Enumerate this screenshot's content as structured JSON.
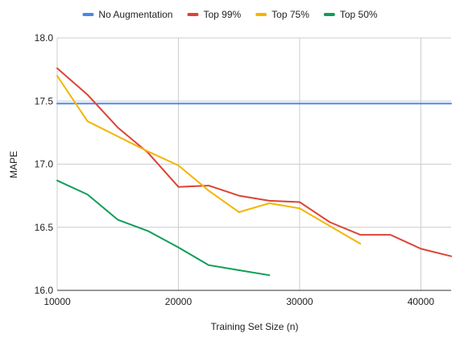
{
  "chart_data": {
    "type": "line",
    "title": "",
    "xlabel": "Training Set Size (n)",
    "ylabel": "MAPE",
    "xlim": [
      10000,
      42500
    ],
    "ylim": [
      16.0,
      18.0
    ],
    "x_ticks": [
      10000,
      20000,
      30000,
      40000
    ],
    "y_ticks": [
      "16.0",
      "16.5",
      "17.0",
      "17.5",
      "18.0"
    ],
    "grid": true,
    "legend_position": "top",
    "series": [
      {
        "name": "No Augmentation",
        "color": "#4a86e8",
        "points": [
          [
            10000,
            17.48
          ],
          [
            42500,
            17.48
          ]
        ]
      },
      {
        "name": "Top 99%",
        "color": "#db4437",
        "points": [
          [
            10000,
            17.76
          ],
          [
            12500,
            17.55
          ],
          [
            15000,
            17.29
          ],
          [
            17500,
            17.09
          ],
          [
            20000,
            16.82
          ],
          [
            22500,
            16.83
          ],
          [
            25000,
            16.75
          ],
          [
            27500,
            16.71
          ],
          [
            30000,
            16.7
          ],
          [
            32500,
            16.54
          ],
          [
            35000,
            16.44
          ],
          [
            37500,
            16.44
          ],
          [
            40000,
            16.33
          ],
          [
            42500,
            16.27
          ]
        ]
      },
      {
        "name": "Top 75%",
        "color": "#f4b400",
        "points": [
          [
            10000,
            17.7
          ],
          [
            12500,
            17.34
          ],
          [
            15000,
            17.22
          ],
          [
            17500,
            17.1
          ],
          [
            20000,
            16.99
          ],
          [
            22500,
            16.79
          ],
          [
            25000,
            16.62
          ],
          [
            27500,
            16.69
          ],
          [
            30000,
            16.65
          ],
          [
            32500,
            16.51
          ],
          [
            35000,
            16.37
          ]
        ]
      },
      {
        "name": "Top 50%",
        "color": "#0f9d58",
        "points": [
          [
            10000,
            16.87
          ],
          [
            12500,
            16.76
          ],
          [
            15000,
            16.56
          ],
          [
            17500,
            16.47
          ],
          [
            20000,
            16.34
          ],
          [
            22500,
            16.2
          ],
          [
            25000,
            16.16
          ],
          [
            27500,
            16.12
          ]
        ]
      }
    ]
  }
}
